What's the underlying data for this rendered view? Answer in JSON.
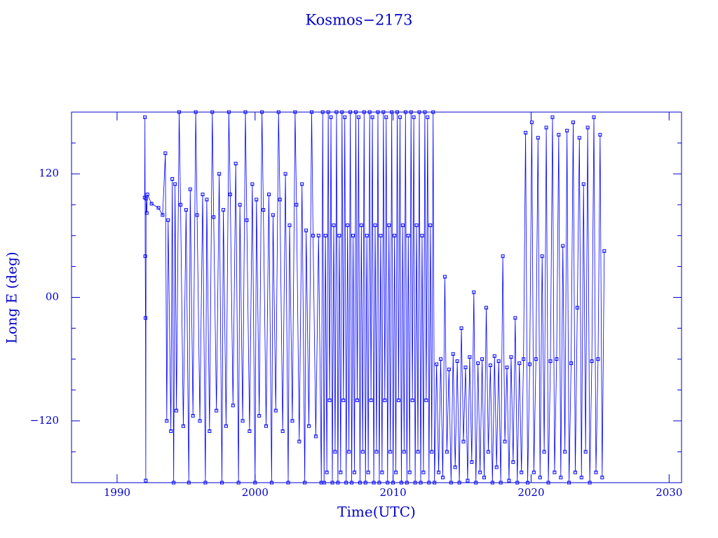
{
  "chart_data": {
    "type": "line",
    "title": "Kosmos−2173",
    "xlabel": "Time(UTC)",
    "ylabel": "Long E (deg)",
    "xlim": [
      1986.7,
      2030.9
    ],
    "ylim": [
      -180,
      180
    ],
    "xticks": [
      1990,
      2000,
      2010,
      2020,
      2030
    ],
    "yticks": [
      {
        "value": -120,
        "label": "−120"
      },
      {
        "value": 0,
        "label": "00"
      },
      120
    ],
    "yminor_ticks": [
      -150,
      -90,
      -60,
      -30,
      30,
      60,
      90,
      150
    ],
    "grid": false,
    "x": [
      1992.0,
      1992.02,
      1992.04,
      1992.06,
      1992.08,
      1992.1,
      1992.15,
      1992.2,
      1992.5,
      1993.0,
      1993.3,
      1993.5,
      1993.6,
      1993.7,
      1993.9,
      1994.0,
      1994.1,
      1994.2,
      1994.3,
      1994.5,
      1994.6,
      1994.8,
      1995.0,
      1995.2,
      1995.3,
      1995.5,
      1995.7,
      1995.8,
      1996.0,
      1996.2,
      1996.4,
      1996.5,
      1996.7,
      1996.9,
      1997.0,
      1997.2,
      1997.4,
      1997.6,
      1997.7,
      1997.9,
      1998.1,
      1998.2,
      1998.4,
      1998.6,
      1998.8,
      1998.9,
      1999.1,
      1999.3,
      1999.4,
      1999.6,
      1999.8,
      2000.0,
      2000.1,
      2000.3,
      2000.5,
      2000.6,
      2000.8,
      2001.0,
      2001.2,
      2001.3,
      2001.5,
      2001.7,
      2001.8,
      2002.0,
      2002.2,
      2002.4,
      2002.5,
      2002.7,
      2002.9,
      2003.0,
      2003.2,
      2003.4,
      2003.6,
      2003.7,
      2003.9,
      2004.1,
      2004.2,
      2004.4,
      2004.6,
      2004.8,
      2004.9,
      2005.0,
      2005.1,
      2005.2,
      2005.3,
      2005.4,
      2005.5,
      2005.6,
      2005.7,
      2005.8,
      2005.9,
      2006.0,
      2006.1,
      2006.2,
      2006.3,
      2006.4,
      2006.5,
      2006.6,
      2006.7,
      2006.8,
      2006.9,
      2007.0,
      2007.1,
      2007.2,
      2007.3,
      2007.4,
      2007.5,
      2007.6,
      2007.7,
      2007.8,
      2007.9,
      2008.0,
      2008.1,
      2008.2,
      2008.3,
      2008.4,
      2008.5,
      2008.6,
      2008.7,
      2008.8,
      2008.9,
      2009.0,
      2009.1,
      2009.2,
      2009.3,
      2009.4,
      2009.5,
      2009.6,
      2009.7,
      2009.8,
      2009.9,
      2010.0,
      2010.1,
      2010.2,
      2010.3,
      2010.4,
      2010.5,
      2010.6,
      2010.7,
      2010.8,
      2010.9,
      2011.0,
      2011.1,
      2011.2,
      2011.3,
      2011.4,
      2011.5,
      2011.6,
      2011.7,
      2011.8,
      2011.9,
      2012.0,
      2012.1,
      2012.2,
      2012.3,
      2012.4,
      2012.5,
      2012.6,
      2012.7,
      2012.8,
      2012.9,
      2013.0,
      2013.15,
      2013.3,
      2013.45,
      2013.6,
      2013.75,
      2013.9,
      2014.05,
      2014.2,
      2014.35,
      2014.5,
      2014.65,
      2014.8,
      2014.95,
      2015.1,
      2015.25,
      2015.4,
      2015.55,
      2015.7,
      2015.85,
      2016.0,
      2016.15,
      2016.3,
      2016.45,
      2016.6,
      2016.75,
      2016.9,
      2017.05,
      2017.2,
      2017.35,
      2017.5,
      2017.65,
      2017.8,
      2017.95,
      2018.1,
      2018.25,
      2018.4,
      2018.55,
      2018.7,
      2018.85,
      2019.0,
      2019.15,
      2019.3,
      2019.45,
      2019.6,
      2019.75,
      2019.9,
      2020.05,
      2020.2,
      2020.35,
      2020.5,
      2020.65,
      2020.8,
      2020.95,
      2021.1,
      2021.25,
      2021.4,
      2021.55,
      2021.7,
      2021.85,
      2022.0,
      2022.15,
      2022.3,
      2022.45,
      2022.6,
      2022.75,
      2022.9,
      2023.05,
      2023.2,
      2023.35,
      2023.5,
      2023.65,
      2023.8,
      2023.95,
      2024.1,
      2024.25,
      2024.4,
      2024.55,
      2024.7,
      2024.85,
      2025.0,
      2025.15,
      2025.3
    ],
    "series": [
      {
        "color": "#0000ff",
        "values": [
          97,
          175,
          40,
          -20,
          -178,
          96,
          82,
          100,
          91,
          87,
          80,
          140,
          -120,
          75,
          -130,
          115,
          -180,
          110,
          -110,
          180,
          90,
          -125,
          85,
          -180,
          105,
          -115,
          180,
          80,
          -120,
          100,
          -180,
          95,
          -130,
          180,
          78,
          -110,
          120,
          -180,
          85,
          -125,
          180,
          100,
          -105,
          130,
          -180,
          90,
          -120,
          180,
          75,
          -130,
          110,
          -180,
          95,
          -115,
          180,
          85,
          -125,
          100,
          -180,
          80,
          -110,
          180,
          95,
          -130,
          120,
          -180,
          70,
          -120,
          180,
          90,
          -140,
          110,
          -180,
          65,
          -125,
          180,
          60,
          -135,
          60,
          -180,
          180,
          -180,
          60,
          -170,
          180,
          -100,
          175,
          -180,
          70,
          -150,
          180,
          -180,
          60,
          -170,
          180,
          -100,
          175,
          -180,
          70,
          -150,
          180,
          -180,
          60,
          -170,
          180,
          -100,
          175,
          -180,
          70,
          -150,
          180,
          -180,
          60,
          -170,
          180,
          -100,
          175,
          -180,
          70,
          -150,
          180,
          -180,
          60,
          -170,
          180,
          -100,
          175,
          -180,
          70,
          -150,
          180,
          -180,
          60,
          -170,
          180,
          -100,
          175,
          -180,
          70,
          -150,
          180,
          -180,
          60,
          -170,
          180,
          -100,
          175,
          -180,
          70,
          -150,
          180,
          -180,
          60,
          -170,
          180,
          -100,
          175,
          -180,
          70,
          -150,
          180,
          -180,
          -65,
          -170,
          -60,
          -175,
          20,
          -150,
          -70,
          -180,
          -55,
          -165,
          -62,
          -180,
          -30,
          -140,
          -68,
          -178,
          -58,
          -160,
          5,
          -180,
          -64,
          -170,
          -60,
          -175,
          -10,
          -150,
          -66,
          -180,
          -57,
          -165,
          -62,
          -180,
          40,
          -140,
          -68,
          -178,
          -58,
          -160,
          -20,
          -180,
          -64,
          -170,
          -60,
          160,
          -180,
          -65,
          170,
          -170,
          -60,
          155,
          -175,
          40,
          -150,
          165,
          -180,
          -62,
          175,
          -170,
          -60,
          158,
          -175,
          50,
          -150,
          162,
          -180,
          -64,
          170,
          -170,
          -10,
          155,
          -175,
          110,
          -150,
          165,
          -180,
          -62,
          175,
          -170,
          -60,
          158,
          -175,
          45
        ]
      }
    ]
  }
}
